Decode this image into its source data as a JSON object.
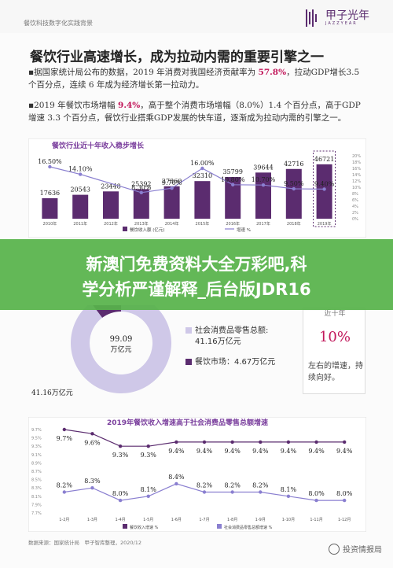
{
  "header": {
    "section_label": "餐饮科技数字化实践背景",
    "brand_name": "甲子光年",
    "brand_sub": "JAZZYEAR"
  },
  "title": "餐饮行业高速增长，成为拉动内需的重要引擎之一",
  "bullets": [
    {
      "lines": [
        "▪据国家统计局公布的数据，2019 年消费对我国经济贡献率为 ",
        "57.8%",
        "，拉动GDP增长3.5",
        "个百分点，连续 6 年成为经济增长第一拉动力。"
      ]
    },
    {
      "lines": [
        "▪2019 年餐饮市场增幅 ",
        "9.4%",
        "，高于整个消费市场增幅（8.0%）1.4 个百分点，高于GDP",
        "增速 3.3 个百分点，餐饮行业搭乘GDP发展的快车道，逐渐成为拉动内需的引擎之一。"
      ]
    }
  ],
  "overlay": {
    "line1": "新澳门免费资料大全万彩吧,科",
    "line2": "学分析严谨解释_后台版JDR16"
  },
  "chart_data": [
    {
      "type": "bar",
      "title": "餐饮行业近十年收入稳步增长",
      "categories": [
        "2010年",
        "2011年",
        "2012年",
        "2013年",
        "2014年",
        "2015年",
        "2016年",
        "2017年",
        "2018年",
        "2019年"
      ],
      "series": [
        {
          "name": "餐饮收入额 (亿元)",
          "values": [
            17636,
            20543,
            23448,
            25392,
            27860,
            32310,
            35799,
            39644,
            42716,
            46721
          ]
        },
        {
          "name": "增速 %",
          "type": "line",
          "values": [
            16.5,
            14.1,
            null,
            8.3,
            9.7,
            16.0,
            10.8,
            10.7,
            9.5,
            9.4
          ]
        }
      ],
      "y2ticks": [
        "20%",
        "18%",
        "16%",
        "14%",
        "12%",
        "10%",
        "8%",
        "6%",
        "4%",
        "2%",
        "0%"
      ]
    },
    {
      "type": "pie",
      "labels": [
        "社会消费品零售总额",
        "餐饮市场"
      ],
      "values": [
        41.16,
        4.67
      ],
      "center_label": [
        "99.09",
        "万亿元"
      ],
      "outer_label": "41.16万亿元"
    },
    {
      "type": "line",
      "title": "2019年餐饮收入增速高于社会消费品零售总额增速",
      "categories": [
        "1-2月",
        "1-3月",
        "1-4月",
        "1-5月",
        "1-6月",
        "1-7月",
        "1-8月",
        "1-9月",
        "1-10月",
        "1-11月",
        "1-12月"
      ],
      "series": [
        {
          "name": "餐饮收入增速 %",
          "values": [
            9.7,
            9.6,
            9.3,
            9.3,
            9.4,
            9.4,
            9.4,
            9.4,
            9.4,
            9.4,
            9.4
          ]
        },
        {
          "name": "社会消费品零售总额增速 %",
          "values": [
            8.2,
            8.3,
            8.0,
            8.1,
            8.4,
            8.2,
            8.2,
            8.2,
            8.1,
            8.0,
            8.0
          ]
        }
      ],
      "yticks": [
        "9.7%",
        "9.5%",
        "9.3%",
        "9.1%",
        "8.9%",
        "8.7%",
        "8.5%",
        "8.3%",
        "8.1%",
        "7.9%",
        "7.7%"
      ]
    }
  ],
  "legend": {
    "retail_label": "社会消费品零售总额:",
    "retail_value": "41.16万亿元",
    "food_label": "餐饮市场：4.67万亿元"
  },
  "growth_box": {
    "top": "近十年",
    "pct": "10%",
    "note": "左右的增速，持续向好。"
  },
  "footer": "数据来源：国家统计局　甲子智库整理，2020/12",
  "watermark": "投资情报局",
  "colors": {
    "purple": "#5b2c6f",
    "line": "#8a7fd0",
    "accent": "#c2185b",
    "overlay": "#57b34a"
  }
}
